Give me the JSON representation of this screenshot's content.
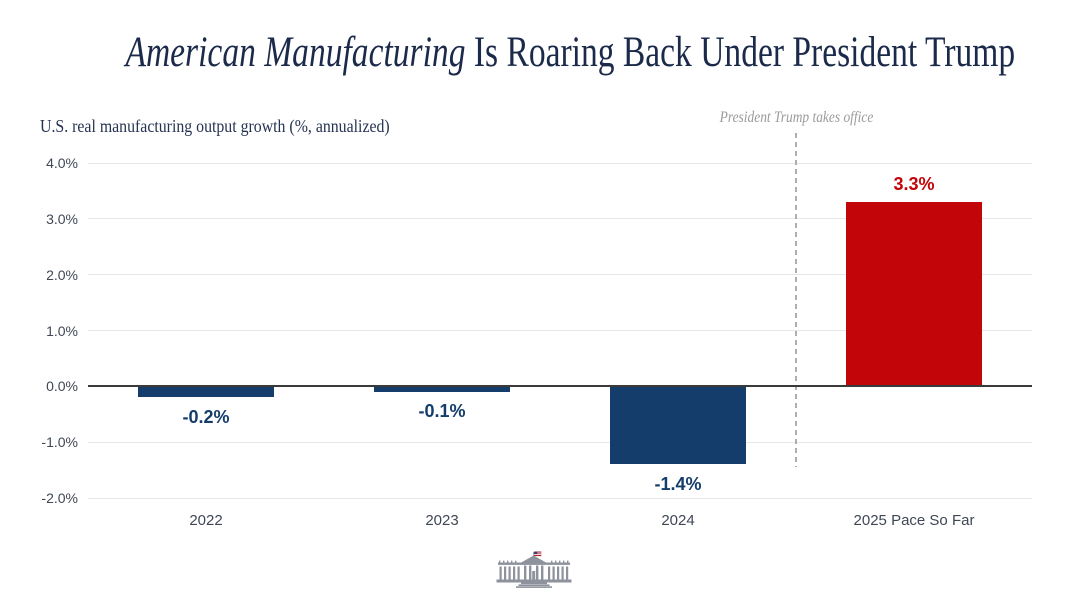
{
  "title": {
    "italic_part": "American Manufacturing",
    "regular_part": " Is Roaring Back Under President Trump"
  },
  "subtitle": {
    "text": "U.S. real manufacturing output growth (%, annualized)"
  },
  "annotation": {
    "text": "President Trump takes office"
  },
  "chart_data": {
    "type": "bar",
    "title": "American Manufacturing Is Roaring Back Under President Trump",
    "ylabel": "U.S. real manufacturing output growth (%, annualized)",
    "xlabel": "",
    "categories": [
      "2022",
      "2023",
      "2024",
      "2025 Pace So Far"
    ],
    "values": [
      -0.2,
      -0.1,
      -1.4,
      3.3
    ],
    "value_labels": [
      "-0.2%",
      "-0.1%",
      "-1.4%",
      "3.3%"
    ],
    "bar_colors": [
      "#143d6b",
      "#143d6b",
      "#143d6b",
      "#c20508"
    ],
    "label_colors": [
      "#143d6b",
      "#143d6b",
      "#143d6b",
      "#c20508"
    ],
    "ylim": [
      -2.0,
      4.0
    ],
    "yticks": [
      4.0,
      3.0,
      2.0,
      1.0,
      0.0,
      -1.0,
      -2.0
    ],
    "ytick_labels": [
      "4.0%",
      "3.0%",
      "2.0%",
      "1.0%",
      "0.0%",
      "-1.0%",
      "-2.0%"
    ],
    "grid": true,
    "legend": false,
    "annotation": "President Trump takes office",
    "annotation_line_between": [
      "2024",
      "2025 Pace So Far"
    ]
  },
  "footer": {
    "logo_icon": "white-house-icon"
  },
  "colors": {
    "navy": "#143d6b",
    "red": "#c20508",
    "title_text": "#1b2a4a",
    "grid": "#e7e7e7",
    "axis": "#3a3a3a",
    "dashed_line": "#aeaeae",
    "annotation_text": "#9b9b9b",
    "tick_text": "#3f4754",
    "logo_gray": "#8d929c"
  }
}
